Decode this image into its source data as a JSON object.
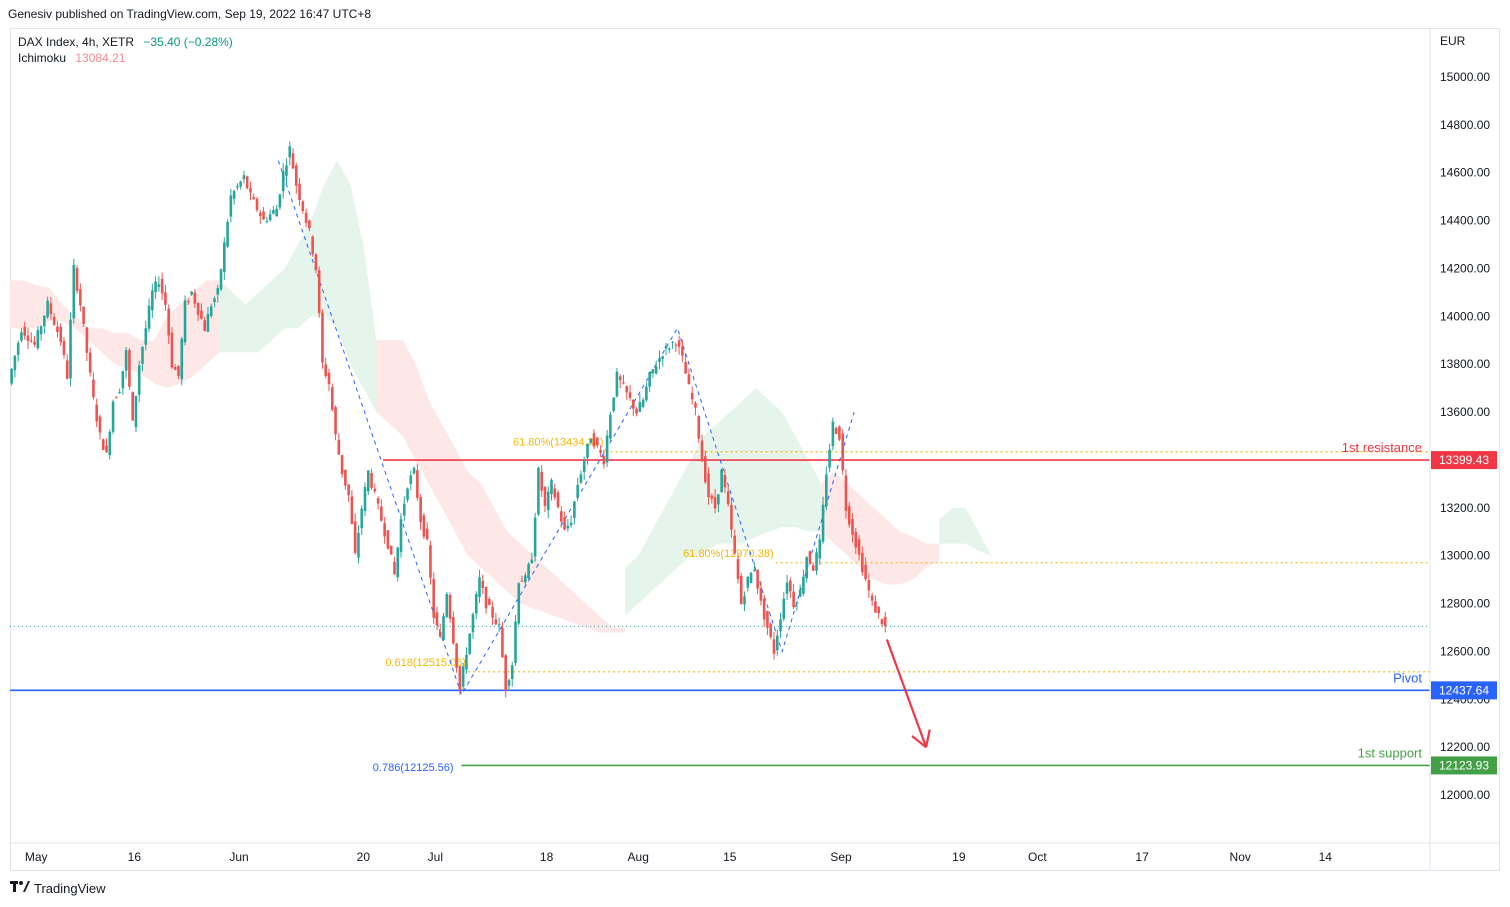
{
  "publisher": "Genesiv published on TradingView.com, Sep 19, 2022 16:47 UTC+8",
  "legend": {
    "symbol": "DAX Index, 4h, XETR",
    "change": "−35.40 (−0.28%)",
    "indicator_name": "Ichimoku",
    "indicator_value": "13084.21"
  },
  "footer": {
    "brand": "TradingView"
  },
  "colors": {
    "bull": "#26a69a",
    "bear": "#ef5350",
    "resistance": "#f23645",
    "pivot": "#2962ff",
    "support": "#43a047",
    "fib": "#f5b700",
    "cloud_bull": "#e2f3e7",
    "cloud_bear": "#fde3e3"
  },
  "chart_data": {
    "type": "line",
    "title": "",
    "currency_label": "EUR",
    "ylim": [
      11800,
      15200
    ],
    "y_ticks": [
      "15000.00",
      "14800.00",
      "14600.00",
      "14400.00",
      "14200.00",
      "14000.00",
      "13800.00",
      "13600.00",
      "13400.00",
      "13200.00",
      "13000.00",
      "12800.00",
      "12600.00",
      "12400.00",
      "12200.00",
      "12000.00"
    ],
    "x_ticks": [
      {
        "label": "May",
        "t": 0
      },
      {
        "label": "16",
        "t": 15
      },
      {
        "label": "Jun",
        "t": 31
      },
      {
        "label": "20",
        "t": 50
      },
      {
        "label": "Jul",
        "t": 61
      },
      {
        "label": "18",
        "t": 78
      },
      {
        "label": "Aug",
        "t": 92
      },
      {
        "label": "15",
        "t": 106
      },
      {
        "label": "Sep",
        "t": 123
      },
      {
        "label": "19",
        "t": 141
      },
      {
        "label": "Oct",
        "t": 153
      },
      {
        "label": "17",
        "t": 169
      },
      {
        "label": "Nov",
        "t": 184
      },
      {
        "label": "14",
        "t": 197
      }
    ],
    "x_range": [
      -4,
      213
    ],
    "price_path": [
      [
        -4,
        13720
      ],
      [
        -2,
        13950
      ],
      [
        0,
        13880
      ],
      [
        2,
        14050
      ],
      [
        4,
        13900
      ],
      [
        5,
        13750
      ],
      [
        6,
        14200
      ],
      [
        7,
        14050
      ],
      [
        8,
        13850
      ],
      [
        9,
        13650
      ],
      [
        10,
        13500
      ],
      [
        11,
        13420
      ],
      [
        12,
        13650
      ],
      [
        13,
        13700
      ],
      [
        14,
        13850
      ],
      [
        15,
        13550
      ],
      [
        16,
        13800
      ],
      [
        18,
        14100
      ],
      [
        19,
        14150
      ],
      [
        20,
        14050
      ],
      [
        21,
        13800
      ],
      [
        22,
        13750
      ],
      [
        23,
        14050
      ],
      [
        24,
        14100
      ],
      [
        26,
        13950
      ],
      [
        27,
        14050
      ],
      [
        28,
        14100
      ],
      [
        30,
        14500
      ],
      [
        32,
        14580
      ],
      [
        33,
        14500
      ],
      [
        35,
        14400
      ],
      [
        37,
        14450
      ],
      [
        38,
        14600
      ],
      [
        39,
        14700
      ],
      [
        40,
        14550
      ],
      [
        42,
        14350
      ],
      [
        43,
        14200
      ],
      [
        44,
        13800
      ],
      [
        45,
        13720
      ],
      [
        46,
        13500
      ],
      [
        47,
        13350
      ],
      [
        48,
        13250
      ],
      [
        49,
        13000
      ],
      [
        50,
        13200
      ],
      [
        51,
        13350
      ],
      [
        52,
        13250
      ],
      [
        53,
        13150
      ],
      [
        54,
        13050
      ],
      [
        55,
        12920
      ],
      [
        56,
        13150
      ],
      [
        57,
        13300
      ],
      [
        58,
        13350
      ],
      [
        59,
        13150
      ],
      [
        60,
        13050
      ],
      [
        61,
        12750
      ],
      [
        62,
        12650
      ],
      [
        63,
        12850
      ],
      [
        64,
        12650
      ],
      [
        65,
        12440
      ],
      [
        66,
        12600
      ],
      [
        67,
        12750
      ],
      [
        68,
        12900
      ],
      [
        69,
        12800
      ],
      [
        70,
        12750
      ],
      [
        71,
        12700
      ],
      [
        72,
        12450
      ],
      [
        73,
        12550
      ],
      [
        74,
        12900
      ],
      [
        75,
        12900
      ],
      [
        76,
        13000
      ],
      [
        77,
        13350
      ],
      [
        78,
        13200
      ],
      [
        79,
        13300
      ],
      [
        80,
        13200
      ],
      [
        81,
        13100
      ],
      [
        82,
        13150
      ],
      [
        83,
        13300
      ],
      [
        84,
        13400
      ],
      [
        85,
        13500
      ],
      [
        86,
        13450
      ],
      [
        87,
        13400
      ],
      [
        88,
        13600
      ],
      [
        89,
        13750
      ],
      [
        90,
        13700
      ],
      [
        92,
        13600
      ],
      [
        93,
        13650
      ],
      [
        94,
        13750
      ],
      [
        96,
        13850
      ],
      [
        98,
        13900
      ],
      [
        99,
        13820
      ],
      [
        100,
        13700
      ],
      [
        101,
        13600
      ],
      [
        102,
        13400
      ],
      [
        103,
        13250
      ],
      [
        104,
        13200
      ],
      [
        105,
        13350
      ],
      [
        106,
        13200
      ],
      [
        107,
        13000
      ],
      [
        108,
        12800
      ],
      [
        109,
        12900
      ],
      [
        110,
        12950
      ],
      [
        111,
        12800
      ],
      [
        112,
        12700
      ],
      [
        113,
        12600
      ],
      [
        114,
        12750
      ],
      [
        115,
        12900
      ],
      [
        116,
        12800
      ],
      [
        117,
        12850
      ],
      [
        118,
        13000
      ],
      [
        119,
        12950
      ],
      [
        120,
        13050
      ],
      [
        121,
        13350
      ],
      [
        122,
        13550
      ],
      [
        123,
        13500
      ],
      [
        124,
        13200
      ],
      [
        125,
        13100
      ],
      [
        126,
        13000
      ],
      [
        127,
        12900
      ],
      [
        128,
        12800
      ],
      [
        129,
        12750
      ],
      [
        130,
        12700
      ]
    ],
    "ichimoku_cloud": {
      "bear_segments": [
        {
          "t": [
            -4,
            -2,
            0,
            2,
            4,
            6,
            8,
            10,
            12,
            14,
            16,
            18,
            20,
            22,
            24,
            26,
            28
          ],
          "upper": [
            14150,
            14150,
            14130,
            14120,
            14050,
            14000,
            13950,
            13950,
            13930,
            13930,
            13900,
            13900,
            14000,
            14050,
            14100,
            14150,
            14150
          ],
          "lower": [
            13950,
            13950,
            13950,
            13980,
            13980,
            13950,
            13900,
            13850,
            13800,
            13780,
            13760,
            13720,
            13700,
            13720,
            13750,
            13800,
            13850
          ]
        },
        {
          "t": [
            52,
            56,
            58,
            60,
            62,
            64,
            66,
            68,
            70,
            72,
            74,
            76,
            78,
            80,
            82,
            84,
            86,
            88,
            90
          ],
          "upper": [
            13900,
            13900,
            13800,
            13650,
            13550,
            13450,
            13350,
            13300,
            13200,
            13100,
            13050,
            13000,
            12950,
            12900,
            12850,
            12800,
            12750,
            12700,
            12700
          ],
          "lower": [
            13600,
            13500,
            13400,
            13300,
            13200,
            13100,
            13000,
            12950,
            12900,
            12850,
            12800,
            12780,
            12760,
            12740,
            12720,
            12700,
            12680,
            12680,
            12680
          ]
        },
        {
          "t": [
            120,
            122,
            124,
            126,
            128,
            130,
            132,
            134,
            136,
            138
          ],
          "upper": [
            13300,
            13350,
            13300,
            13250,
            13200,
            13150,
            13100,
            13080,
            13050,
            13050
          ],
          "lower": [
            13100,
            13050,
            13000,
            12950,
            12900,
            12880,
            12880,
            12900,
            12950,
            12980
          ]
        }
      ],
      "bull_segments": [
        {
          "t": [
            28,
            30,
            32,
            34,
            36,
            38,
            40,
            42,
            44,
            46,
            48,
            50,
            52
          ],
          "upper": [
            14150,
            14100,
            14050,
            14100,
            14150,
            14200,
            14300,
            14400,
            14550,
            14650,
            14550,
            14300,
            13900
          ],
          "lower": [
            13850,
            13850,
            13850,
            13850,
            13900,
            13950,
            13950,
            14000,
            14000,
            13950,
            13800,
            13700,
            13600
          ]
        },
        {
          "t": [
            90,
            92,
            94,
            96,
            98,
            100,
            102,
            104,
            106,
            108,
            110,
            112,
            114,
            116,
            118,
            120
          ],
          "upper": [
            12950,
            13000,
            13100,
            13200,
            13300,
            13400,
            13500,
            13550,
            13600,
            13650,
            13700,
            13650,
            13600,
            13500,
            13400,
            13300
          ],
          "lower": [
            12750,
            12800,
            12850,
            12900,
            12950,
            13000,
            13000,
            13050,
            13050,
            13050,
            13080,
            13100,
            13120,
            13120,
            13100,
            13100
          ]
        },
        {
          "t": [
            138,
            140,
            142,
            144,
            146
          ],
          "upper": [
            13150,
            13200,
            13200,
            13100,
            13000
          ],
          "lower": [
            13050,
            13050,
            13050,
            13020,
            13000
          ]
        }
      ]
    },
    "zigzag": [
      [
        37,
        14650
      ],
      [
        65,
        12420
      ],
      [
        98,
        13950
      ],
      [
        114,
        12600
      ],
      [
        125,
        13600
      ]
    ],
    "levels": [
      {
        "name": "1st resistance",
        "value": 13399.43,
        "badge": "13399.43",
        "color": "#f23645",
        "from_t": 53
      },
      {
        "name": "Pivot",
        "value": 12437.64,
        "badge": "12437.64",
        "color": "#2962ff",
        "from_t": -4
      },
      {
        "name": "1st support",
        "value": 12123.93,
        "badge": "12123.93",
        "color": "#43a047",
        "from_t": 65
      }
    ],
    "fib_levels": [
      {
        "label": "61.80%(13434.34)",
        "value": 13434.34,
        "from_t": 87,
        "to_t": 200
      },
      {
        "label": "61.80%(12970.38)",
        "value": 12970.38,
        "from_t": 113,
        "to_t": 200
      },
      {
        "label": "0.618(12515.06)",
        "value": 12515.06,
        "from_t": 66,
        "to_t": 200
      }
    ],
    "fib_786": {
      "label": "0.786(12125.56)",
      "value": 12125.56
    },
    "last_price_line": 12705,
    "arrow": {
      "from": [
        130,
        12650
      ],
      "to": [
        136,
        12200
      ]
    }
  }
}
